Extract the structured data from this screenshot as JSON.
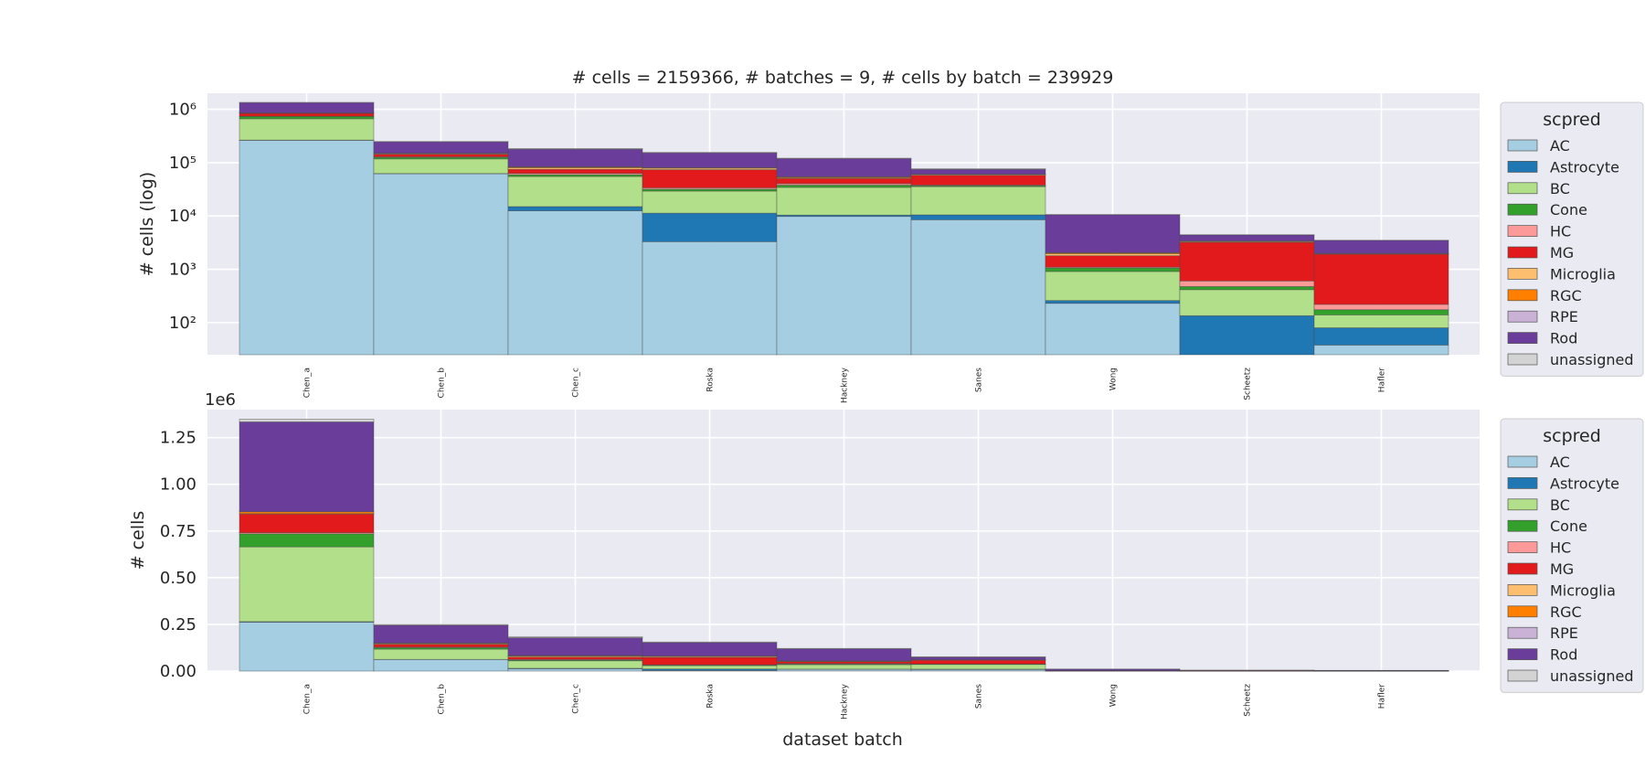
{
  "title": "# cells = 2159366, # batches = 9, # cells by batch = 239929",
  "xlabel": "dataset batch",
  "legend_title": "scpred",
  "colors": {
    "AC": "#a6cee3",
    "Astrocyte": "#1f78b4",
    "BC": "#b2df8a",
    "Cone": "#33a02c",
    "HC": "#fb9a99",
    "MG": "#e31a1c",
    "Microglia": "#fdbf6f",
    "RGC": "#ff7f00",
    "RPE": "#cab2d6",
    "Rod": "#6a3d9a",
    "unassigned": "#d3d3d3"
  },
  "chart_data": [
    {
      "type": "bar",
      "stacked": true,
      "yscale": "log",
      "ylabel": "# cells (log)",
      "ylim": [
        25,
        2000000
      ],
      "yticks": [
        {
          "value": 100,
          "label": "10²"
        },
        {
          "value": 1000,
          "label": "10³"
        },
        {
          "value": 10000,
          "label": "10⁴"
        },
        {
          "value": 100000,
          "label": "10⁵"
        },
        {
          "value": 1000000,
          "label": "10⁶"
        }
      ],
      "categories": [
        "Chen_a",
        "Chen_b",
        "Chen_c",
        "Roska",
        "Hackney",
        "Sanes",
        "Wong",
        "Scheetz",
        "Hafler"
      ],
      "grid": true,
      "legend": "right"
    },
    {
      "type": "bar",
      "stacked": true,
      "yscale": "linear",
      "ylabel": "# cells",
      "ylim": [
        0,
        1400000
      ],
      "offset_label": "1e6",
      "yticks": [
        {
          "value": 0,
          "label": "0.00"
        },
        {
          "value": 250000,
          "label": "0.25"
        },
        {
          "value": 500000,
          "label": "0.50"
        },
        {
          "value": 750000,
          "label": "0.75"
        },
        {
          "value": 1000000,
          "label": "1.00"
        },
        {
          "value": 1250000,
          "label": "1.25"
        }
      ],
      "categories": [
        "Chen_a",
        "Chen_b",
        "Chen_c",
        "Roska",
        "Hackney",
        "Sanes",
        "Wong",
        "Scheetz",
        "Hafler"
      ],
      "grid": true,
      "legend": "right"
    }
  ],
  "series": [
    {
      "name": "AC",
      "values": [
        262000,
        62000,
        12500,
        3300,
        9800,
        8500,
        230,
        0,
        38
      ]
    },
    {
      "name": "Astrocyte",
      "values": [
        3000,
        500,
        2500,
        8000,
        600,
        2000,
        30,
        135,
        42
      ]
    },
    {
      "name": "BC",
      "values": [
        400000,
        55000,
        40000,
        18000,
        24000,
        25000,
        650,
        280,
        60
      ]
    },
    {
      "name": "Cone",
      "values": [
        70000,
        8000,
        4500,
        2500,
        3500,
        1500,
        150,
        60,
        35
      ]
    },
    {
      "name": "HC",
      "values": [
        6000,
        3000,
        3500,
        2000,
        2500,
        1000,
        40,
        130,
        45
      ]
    },
    {
      "name": "MG",
      "values": [
        100000,
        15000,
        12000,
        40000,
        10000,
        20000,
        700,
        2600,
        1700
      ]
    },
    {
      "name": "Microglia",
      "values": [
        2000,
        4000,
        5000,
        5000,
        1500,
        2000,
        150,
        100,
        30
      ]
    },
    {
      "name": "RGC",
      "values": [
        10000,
        2000,
        3000,
        1500,
        2000,
        500,
        80,
        50,
        20
      ]
    },
    {
      "name": "RPE",
      "values": [
        1000,
        1000,
        500,
        500,
        500,
        300,
        30,
        50,
        15
      ]
    },
    {
      "name": "Rod",
      "values": [
        480000,
        95000,
        95000,
        72000,
        65000,
        14000,
        8500,
        1000,
        1500
      ]
    },
    {
      "name": "unassigned",
      "values": [
        15000,
        4000,
        6000,
        3000,
        2000,
        2000,
        100,
        50,
        20
      ]
    }
  ]
}
